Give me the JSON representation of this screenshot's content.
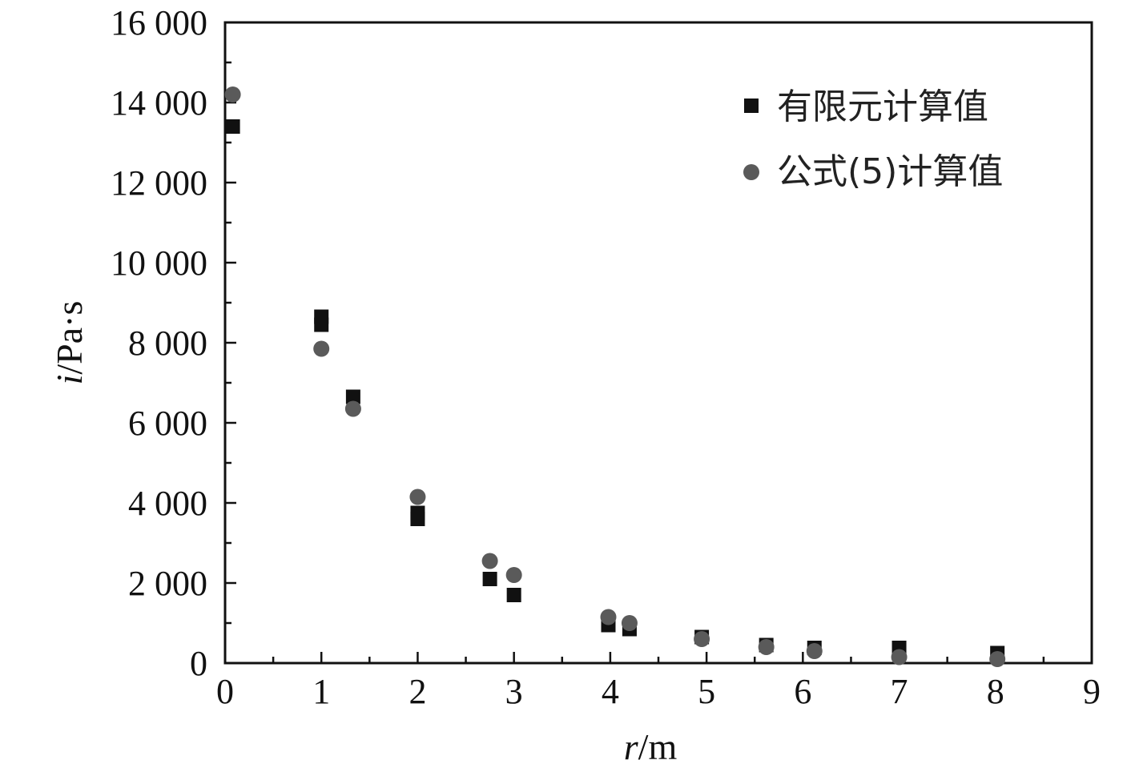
{
  "chart_data": {
    "type": "scatter",
    "title": "",
    "xlabel_var": "r",
    "xlabel_unit": "/m",
    "ylabel_var": "i",
    "ylabel_unit": "/Pa·s",
    "xlim": [
      0,
      9
    ],
    "ylim": [
      0,
      16000
    ],
    "x_ticks": [
      0,
      1,
      2,
      3,
      4,
      5,
      6,
      7,
      8,
      9
    ],
    "x_tick_labels": [
      "0",
      "1",
      "2",
      "3",
      "4",
      "5",
      "6",
      "7",
      "8",
      "9"
    ],
    "y_ticks": [
      0,
      2000,
      4000,
      6000,
      8000,
      10000,
      12000,
      14000,
      16000
    ],
    "y_tick_labels": [
      "0",
      "2 000",
      "4 000",
      "6 000",
      "8 000",
      "10 000",
      "12 000",
      "14 000",
      "16 000"
    ],
    "grid": false,
    "legend_position": "top-right",
    "series": [
      {
        "name": "有限元计算值",
        "marker": "square",
        "color": "#111111",
        "points": [
          {
            "x": 0.08,
            "y": 13400
          },
          {
            "x": 1.0,
            "y": 8650
          },
          {
            "x": 1.0,
            "y": 8450
          },
          {
            "x": 1.33,
            "y": 6650
          },
          {
            "x": 2.0,
            "y": 3750
          },
          {
            "x": 2.0,
            "y": 3600
          },
          {
            "x": 2.75,
            "y": 2100
          },
          {
            "x": 3.0,
            "y": 1700
          },
          {
            "x": 3.98,
            "y": 950
          },
          {
            "x": 4.2,
            "y": 850
          },
          {
            "x": 4.95,
            "y": 650
          },
          {
            "x": 5.62,
            "y": 450
          },
          {
            "x": 6.12,
            "y": 380
          },
          {
            "x": 7.0,
            "y": 380
          },
          {
            "x": 8.02,
            "y": 250
          }
        ]
      },
      {
        "name": "公式(5)计算值",
        "marker": "circle",
        "color": "#5a5a5a",
        "points": [
          {
            "x": 0.08,
            "y": 14200
          },
          {
            "x": 1.0,
            "y": 7850
          },
          {
            "x": 1.33,
            "y": 6350
          },
          {
            "x": 2.0,
            "y": 4150
          },
          {
            "x": 2.75,
            "y": 2550
          },
          {
            "x": 3.0,
            "y": 2200
          },
          {
            "x": 3.98,
            "y": 1150
          },
          {
            "x": 4.2,
            "y": 1000
          },
          {
            "x": 4.95,
            "y": 600
          },
          {
            "x": 5.62,
            "y": 400
          },
          {
            "x": 6.12,
            "y": 300
          },
          {
            "x": 7.0,
            "y": 150
          },
          {
            "x": 8.02,
            "y": 100
          }
        ]
      }
    ]
  }
}
